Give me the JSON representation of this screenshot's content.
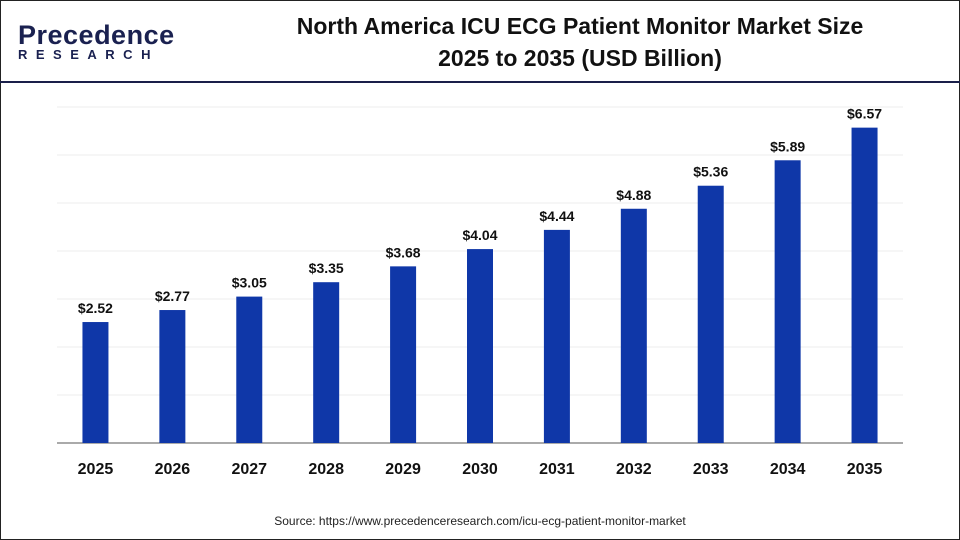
{
  "logo": {
    "name": "Precedence",
    "sub": "RESEARCH"
  },
  "chart_data": {
    "type": "bar",
    "title": "North America ICU ECG Patient Monitor Market Size 2025 to 2035 (USD Billion)",
    "title_lines": [
      "North America ICU ECG Patient Monitor Market Size",
      "2025 to 2035 (USD Billion)"
    ],
    "categories": [
      "2025",
      "2026",
      "2027",
      "2028",
      "2029",
      "2030",
      "2031",
      "2032",
      "2033",
      "2034",
      "2035"
    ],
    "values": [
      2.52,
      2.77,
      3.05,
      3.35,
      3.68,
      4.04,
      4.44,
      4.88,
      5.36,
      5.89,
      6.57
    ],
    "data_labels": [
      "$2.52",
      "$2.77",
      "$3.05",
      "$3.35",
      "$3.68",
      "$4.04",
      "$4.44",
      "$4.88",
      "$5.36",
      "$5.89",
      "$6.57"
    ],
    "xlabel": "",
    "ylabel": "",
    "ylim": [
      0,
      7
    ],
    "grid": true,
    "bar_color": "#0f37a8"
  },
  "source": "Source: https://www.precedenceresearch.com/icu-ecg-patient-monitor-market"
}
